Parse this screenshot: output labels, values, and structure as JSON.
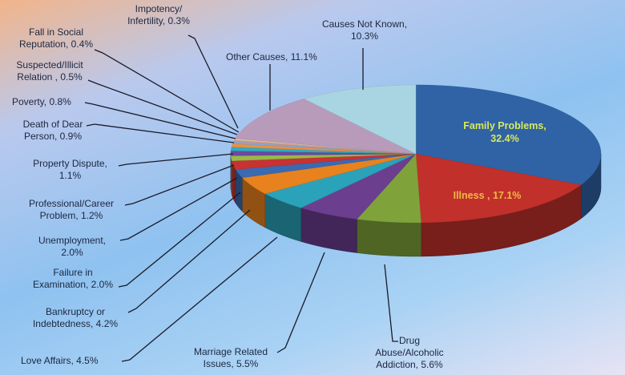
{
  "chart_data": {
    "type": "pie",
    "style": "3d",
    "title": "",
    "slices": [
      {
        "label": "Family Problems",
        "value": 32.4,
        "text": "Family Problems,\n32.4%",
        "color": "#2f63a6"
      },
      {
        "label": "Illness",
        "value": 17.1,
        "text": "Illness , 17.1%",
        "color": "#c1302b"
      },
      {
        "label": "Drug Abuse/Alcoholic Addiction",
        "value": 5.6,
        "text": "Drug\nAbuse/Alcoholic\nAddiction, 5.6%",
        "color": "#7fa33a"
      },
      {
        "label": "Marriage Related Issues",
        "value": 5.5,
        "text": "Marriage Related\nIssues, 5.5%",
        "color": "#6b3e90"
      },
      {
        "label": "Love Affairs",
        "value": 4.5,
        "text": "Love Affairs, 4.5%",
        "color": "#2aa2ba"
      },
      {
        "label": "Bankruptcy or Indebtedness",
        "value": 4.2,
        "text": "Bankruptcy or\nIndebtedness, 4.2%",
        "color": "#e8821e"
      },
      {
        "label": "Failure in Examination",
        "value": 2.0,
        "text": "Failure in\nExamination, 2.0%",
        "color": "#3a6ab2"
      },
      {
        "label": "Unemployment",
        "value": 2.0,
        "text": "Unemployment,\n2.0%",
        "color": "#c83232"
      },
      {
        "label": "Professional/Career Problem",
        "value": 1.2,
        "text": "Professional/Career\nProblem, 1.2%",
        "color": "#9ab84a"
      },
      {
        "label": "Property Dispute",
        "value": 1.1,
        "text": "Property Dispute,\n1.1%",
        "color": "#6a4a9c"
      },
      {
        "label": "Death of Dear Person",
        "value": 0.9,
        "text": "Death of Dear\nPerson, 0.9%",
        "color": "#32aac2"
      },
      {
        "label": "Poverty",
        "value": 0.8,
        "text": "Poverty, 0.8%",
        "color": "#ea9242"
      },
      {
        "label": "Suspected/Illicit Relation",
        "value": 0.5,
        "text": "Suspected/Illicit\nRelation , 0.5%",
        "color": "#8aa8d2"
      },
      {
        "label": "Fall in Social Reputation",
        "value": 0.4,
        "text": "Fall in Social\nReputation, 0.4%",
        "color": "#d89a92"
      },
      {
        "label": "Impotency/Infertility",
        "value": 0.3,
        "text": "Impotency/\nInfertility, 0.3%",
        "color": "#e2c9a0"
      },
      {
        "label": "Other Causes",
        "value": 11.1,
        "text": "Other Causes, 11.1%",
        "color": "#b89bbb"
      },
      {
        "label": "Causes Not Known",
        "value": 10.3,
        "text": "Causes Not Known,\n10.3%",
        "color": "#a9d5e2"
      }
    ],
    "inside_label_colors": {
      "Family Problems": "#d9ea5a",
      "Illness": "#f2b845"
    }
  }
}
